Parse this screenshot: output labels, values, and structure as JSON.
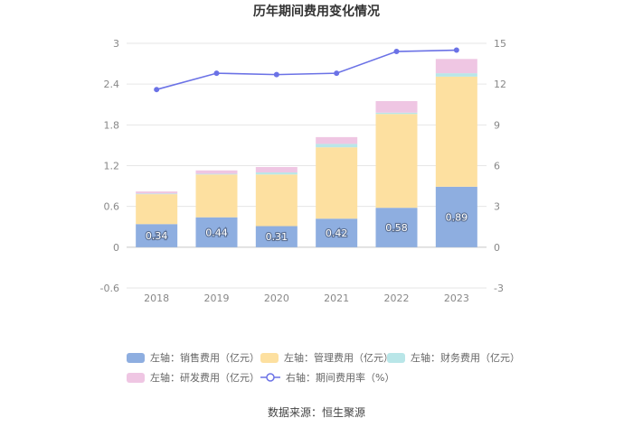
{
  "title": "历年期间费用变化情况",
  "source": "数据来源：恒生聚源",
  "chart_data": {
    "type": "bar",
    "stacked": true,
    "categories": [
      "2018",
      "2019",
      "2020",
      "2021",
      "2022",
      "2023"
    ],
    "left_axis": {
      "min": -0.6,
      "max": 3,
      "ticks": [
        "-0.6",
        "0",
        "0.6",
        "1.2",
        "1.8",
        "2.4",
        "3"
      ]
    },
    "right_axis": {
      "min": -3,
      "max": 15,
      "ticks": [
        "-3",
        "0",
        "3",
        "6",
        "9",
        "12",
        "15"
      ]
    },
    "series": [
      {
        "name": "左轴：销售费用（亿元）",
        "color": "#8eaee0",
        "values": [
          0.34,
          0.44,
          0.31,
          0.42,
          0.58,
          0.89
        ],
        "labels": [
          "0.34",
          "0.44",
          "0.31",
          "0.42",
          "0.58",
          "0.89"
        ]
      },
      {
        "name": "左轴：管理费用（亿元）",
        "color": "#fde0a0",
        "values": [
          0.44,
          0.63,
          0.76,
          1.05,
          1.38,
          1.62
        ]
      },
      {
        "name": "左轴：财务费用（亿元）",
        "color": "#b9e6e8",
        "values": [
          0.01,
          0.01,
          0.03,
          0.05,
          0.02,
          0.05
        ]
      },
      {
        "name": "左轴：研发费用（亿元）",
        "color": "#efc6e3",
        "values": [
          0.03,
          0.05,
          0.08,
          0.1,
          0.17,
          0.21
        ]
      }
    ],
    "line": {
      "name": "右轴：期间费用率（%）",
      "color": "#6b72e6",
      "values": [
        11.6,
        12.8,
        12.7,
        12.8,
        14.4,
        14.5
      ]
    }
  }
}
